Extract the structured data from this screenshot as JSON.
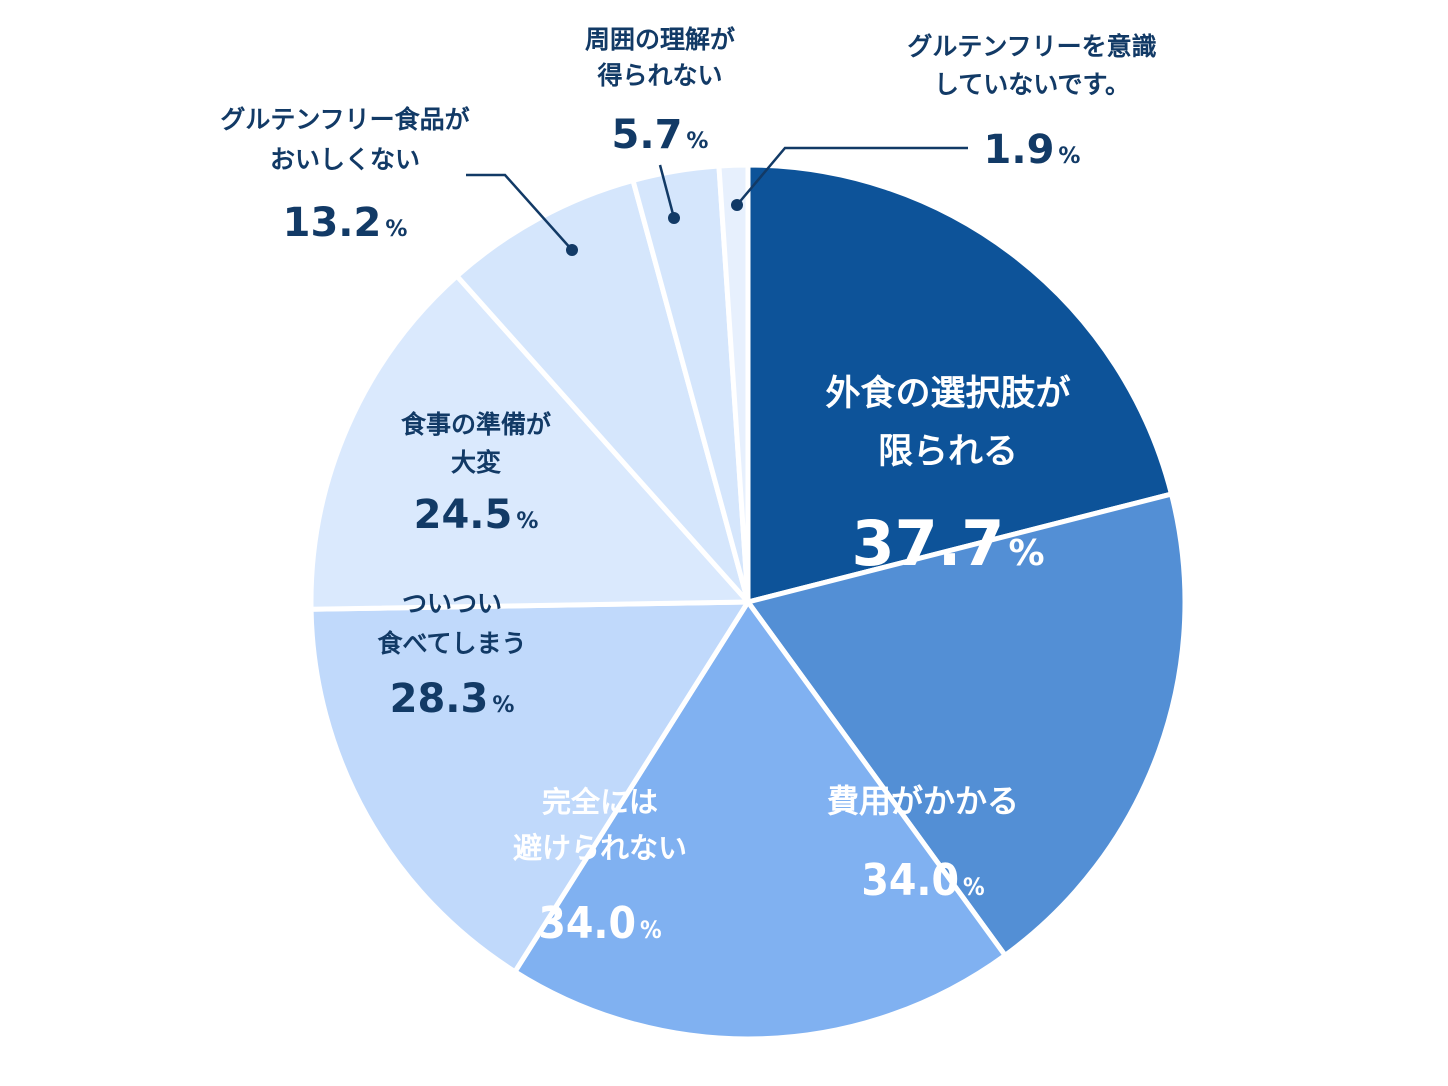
{
  "chart_data": {
    "type": "pie",
    "title": "",
    "unit": "%",
    "slices": [
      {
        "label": "外食の選択肢が限られる",
        "lines": [
          "外食の選択肢が",
          "限られる"
        ],
        "value": 37.7,
        "color": "#0d5399",
        "text_color": "#ffffff"
      },
      {
        "label": "費用がかかる",
        "lines": [
          "費用がかかる"
        ],
        "value": 34.0,
        "color": "#538fd5",
        "text_color": "#ffffff"
      },
      {
        "label": "完全には避けられない",
        "lines": [
          "完全には",
          "避けられない"
        ],
        "value": 34.0,
        "color": "#80b1f1",
        "text_color": "#ffffff"
      },
      {
        "label": "ついつい食べてしまう",
        "lines": [
          "ついつい",
          "食べてしまう"
        ],
        "value": 28.3,
        "color": "#c0d9fb",
        "text_color": "#123a66"
      },
      {
        "label": "食事の準備が大変",
        "lines": [
          "食事の準備が",
          "大変"
        ],
        "value": 24.5,
        "color": "#dae9fd",
        "text_color": "#123a66"
      },
      {
        "label": "グルテンフリー食品がおいしくない",
        "lines": [
          "グルテンフリー食品が",
          "おいしくない"
        ],
        "value": 13.2,
        "color": "#d5e6fc",
        "text_color": "#123a66"
      },
      {
        "label": "周囲の理解が得られない",
        "lines": [
          "周囲の理解が",
          "得られない"
        ],
        "value": 5.7,
        "color": "#d5e6fc",
        "text_color": "#123a66"
      },
      {
        "label": "グルテンフリーを意識していないです。",
        "lines": [
          "グルテンフリーを意識",
          "していないです。"
        ],
        "value": 1.9,
        "color": "#e7f0fd",
        "text_color": "#123a66"
      }
    ],
    "value_strings": [
      "37.7",
      "34.0",
      "34.0",
      "28.3",
      "24.5",
      "13.2",
      "5.7",
      "1.9"
    ],
    "legend": "none"
  }
}
